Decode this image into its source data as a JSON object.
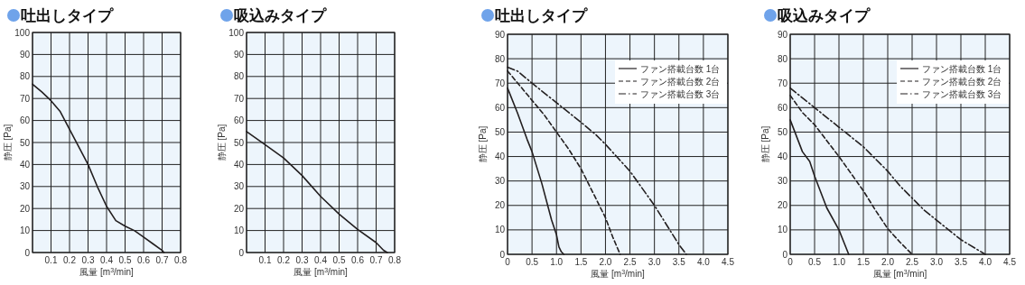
{
  "chart_data": [
    {
      "type": "line",
      "title": "吐出しタイプ",
      "xlabel": "風量 [m$^{3}$/min]",
      "ylabel": "静圧 [Pa]",
      "grid": true,
      "xlim": [
        0,
        0.8
      ],
      "ylim": [
        0,
        100
      ],
      "xticks": [
        {
          "value": 0,
          "label": null
        },
        0.1,
        0.2,
        0.3,
        0.4,
        0.5,
        0.6,
        0.7,
        0.8
      ],
      "yticks": [
        0,
        10,
        20,
        30,
        40,
        50,
        60,
        70,
        80,
        90,
        100
      ],
      "series": [
        {
          "color": "#231f20",
          "line_style": "solid",
          "x": [
            0,
            0.05,
            0.1,
            0.15,
            0.2,
            0.25,
            0.3,
            0.35,
            0.4,
            0.45,
            0.5,
            0.55,
            0.6,
            0.65,
            0.7,
            0.71
          ],
          "values": [
            76.5,
            73,
            69,
            64,
            56,
            48,
            40,
            30,
            21,
            14.5,
            12,
            10,
            7,
            4,
            1,
            0
          ]
        }
      ]
    },
    {
      "type": "line",
      "title": "吸込みタイプ",
      "xlabel": "風量 [m$^{3}$/min]",
      "ylabel": "静圧 [Pa]",
      "grid": true,
      "xlim": [
        0,
        0.8
      ],
      "ylim": [
        0,
        100
      ],
      "xticks": [
        {
          "value": 0,
          "label": null
        },
        0.1,
        0.2,
        0.3,
        0.4,
        0.5,
        0.6,
        0.7,
        0.8
      ],
      "yticks": [
        0,
        10,
        20,
        30,
        40,
        50,
        60,
        70,
        80,
        90,
        100
      ],
      "series": [
        {
          "color": "#231f20",
          "line_style": "solid",
          "x": [
            0,
            0.1,
            0.2,
            0.3,
            0.4,
            0.5,
            0.6,
            0.7,
            0.74,
            0.76
          ],
          "values": [
            55,
            49,
            43,
            35,
            25.5,
            17.5,
            10.5,
            4.5,
            1,
            0
          ]
        }
      ]
    },
    {
      "type": "line",
      "title": "吐出しタイプ",
      "xlabel": "風量 [m$^{3}$/min]",
      "ylabel": "静圧 [Pa]",
      "grid": true,
      "legend": "top right",
      "xlim": [
        0,
        4.5
      ],
      "ylim": [
        0,
        90
      ],
      "xticks": [
        0,
        0.5,
        {
          "value": 1,
          "label": "1.0"
        },
        1.5,
        {
          "value": 2,
          "label": "2.0"
        },
        2.5,
        {
          "value": 3,
          "label": "3.0"
        },
        3.5,
        {
          "value": 4,
          "label": "4.0"
        },
        4.5
      ],
      "yticks": [
        0,
        10,
        20,
        30,
        40,
        50,
        60,
        70,
        80,
        90
      ],
      "series": [
        {
          "name": "ファン搭載台数 1台",
          "color": "#231f20",
          "line_style": "solid",
          "x": [
            0,
            0.2,
            0.4,
            0.5,
            0.7,
            0.9,
            1.0,
            1.05,
            1.1,
            1.15
          ],
          "values": [
            68,
            58,
            47,
            42,
            29,
            14,
            8,
            3,
            1,
            0
          ]
        },
        {
          "name": "ファン搭載台数 2台",
          "color": "#231f20",
          "line_style": "dashed",
          "x": [
            0,
            0.25,
            0.5,
            0.75,
            1.0,
            1.25,
            1.5,
            1.75,
            2.0,
            2.15,
            2.3
          ],
          "values": [
            75,
            69,
            63,
            57,
            50,
            43,
            35,
            25,
            15,
            7,
            0
          ]
        },
        {
          "name": "ファン搭載台数 3台",
          "color": "#231f20",
          "line_style": "dashdot",
          "x": [
            0,
            0.2,
            0.5,
            1.0,
            1.5,
            1.8,
            2.0,
            2.5,
            3.0,
            3.25,
            3.5,
            3.65
          ],
          "values": [
            76.5,
            75,
            70,
            62,
            54,
            49,
            45,
            34,
            20,
            12,
            4,
            0
          ]
        }
      ]
    },
    {
      "type": "line",
      "title": "吸込みタイプ",
      "xlabel": "風量 [m$^{3}$/min]",
      "ylabel": "静圧 [Pa]",
      "grid": true,
      "legend": "top right",
      "xlim": [
        0,
        4.5
      ],
      "ylim": [
        0,
        90
      ],
      "xticks": [
        0,
        0.5,
        {
          "value": 1,
          "label": "1.0"
        },
        1.5,
        {
          "value": 2,
          "label": "2.0"
        },
        2.5,
        {
          "value": 3,
          "label": "3.0"
        },
        3.5,
        {
          "value": 4,
          "label": "4.0"
        },
        4.5
      ],
      "yticks": [
        0,
        10,
        20,
        30,
        40,
        50,
        60,
        70,
        80,
        90
      ],
      "series": [
        {
          "name": "ファン搭載台数 1台",
          "color": "#231f20",
          "line_style": "solid",
          "x": [
            0,
            0.25,
            0.4,
            0.5,
            0.75,
            1.0,
            1.1,
            1.2
          ],
          "values": [
            55,
            42,
            38,
            32,
            19,
            10,
            5,
            0
          ]
        },
        {
          "name": "ファン搭載台数 2台",
          "color": "#231f20",
          "line_style": "dashed",
          "x": [
            0,
            0.25,
            0.5,
            0.75,
            1.0,
            1.25,
            1.5,
            1.75,
            2.0,
            2.25,
            2.5
          ],
          "values": [
            65,
            58,
            53,
            46.5,
            40,
            33,
            26,
            18,
            10.5,
            5,
            0
          ]
        },
        {
          "name": "ファン搭載台数 3台",
          "color": "#231f20",
          "line_style": "dashdot",
          "x": [
            0,
            0.5,
            1.0,
            1.5,
            1.75,
            2.0,
            2.25,
            2.5,
            2.75,
            3.0,
            3.5,
            4.0
          ],
          "values": [
            68,
            60,
            52,
            44,
            39,
            34,
            28,
            23,
            18,
            14,
            6,
            0
          ]
        }
      ]
    }
  ]
}
